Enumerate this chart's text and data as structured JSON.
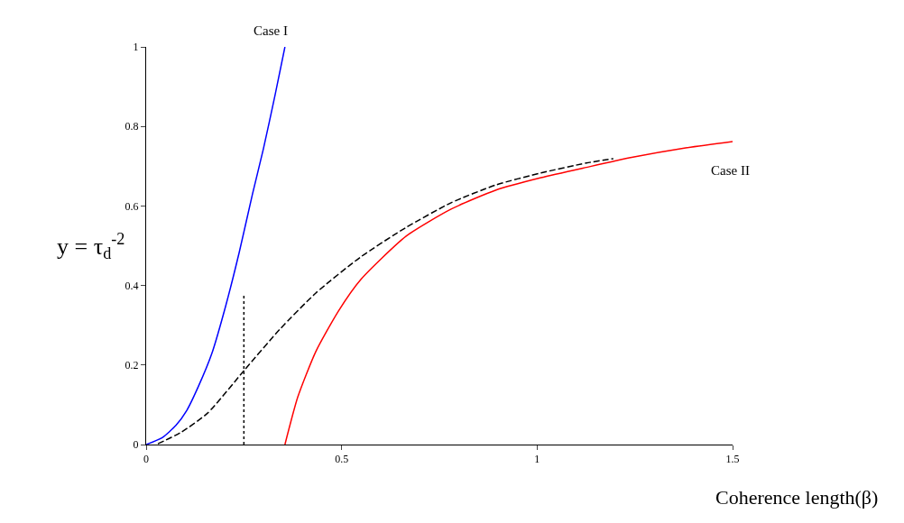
{
  "chart_data": {
    "type": "line",
    "xlabel": "Coherence length(β)",
    "ylabel": "y = τ$_{d}$$^{-2}$",
    "xlim": [
      0,
      1.5
    ],
    "xticks": [
      0,
      0.5,
      1,
      1.5
    ],
    "ylim": [
      0,
      1
    ],
    "yticks": [
      0,
      0.2,
      0.4,
      0.6,
      0.8,
      1
    ],
    "grid": false,
    "marker": "none",
    "line_style": "solid",
    "series": [
      {
        "color": "#0000ff",
        "x": [
          0,
          0.042,
          0.076,
          0.104,
          0.134,
          0.168,
          0.203,
          0.238,
          0.272,
          0.3,
          0.33,
          0.355
        ],
        "values": [
          0,
          0.018,
          0.048,
          0.086,
          0.147,
          0.229,
          0.347,
          0.483,
          0.63,
          0.744,
          0.88,
          1
        ]
      },
      {
        "color": "#000000",
        "line_style": "dashed",
        "x": [
          0.03,
          0.088,
          0.157,
          0.252,
          0.342,
          0.434,
          0.549,
          0.665,
          0.78,
          0.895,
          1.01,
          1.126,
          1.195
        ],
        "values": [
          0.002,
          0.03,
          0.079,
          0.188,
          0.29,
          0.381,
          0.472,
          0.546,
          0.608,
          0.653,
          0.683,
          0.708,
          0.719
        ]
      },
      {
        "color": "#ff0000",
        "x": [
          0.355,
          0.388,
          0.434,
          0.492,
          0.549,
          0.665,
          0.78,
          0.895,
          1.01,
          1.126,
          1.242,
          1.38,
          1.5
        ],
        "values": [
          0,
          0.12,
          0.234,
          0.336,
          0.415,
          0.524,
          0.592,
          0.64,
          0.671,
          0.697,
          0.722,
          0.746,
          0.762
        ]
      },
      {
        "color": "#000000",
        "line_style": "dotted",
        "x": [
          0.25,
          0.25
        ],
        "values": [
          0,
          0.38
        ]
      }
    ],
    "annotations": [
      {
        "text": "Case I",
        "x": 0.355,
        "y": 1
      },
      "Case II"
    ]
  }
}
